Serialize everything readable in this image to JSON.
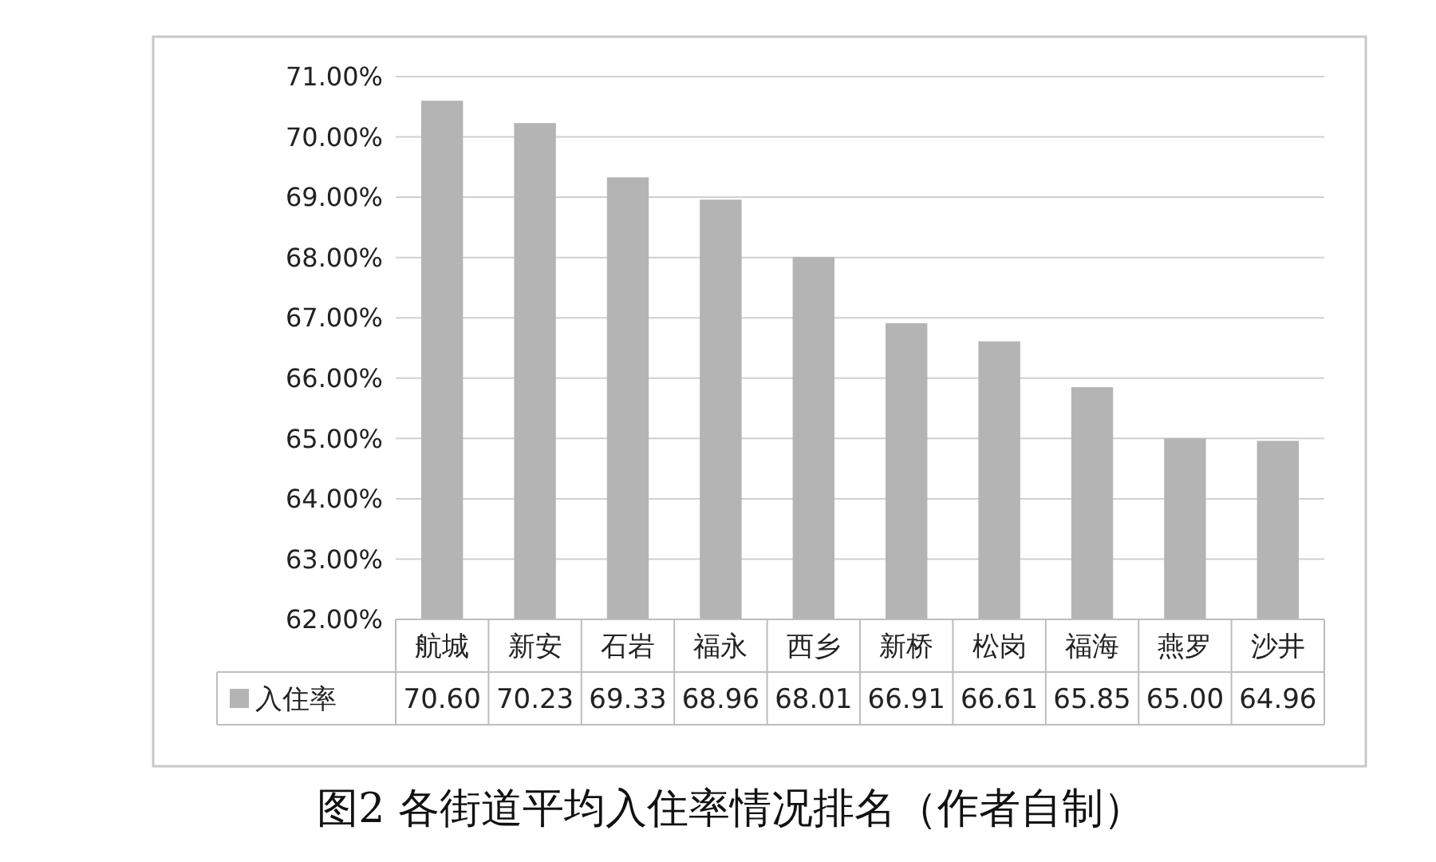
{
  "chart_data": {
    "type": "bar",
    "title": "图2 各街道平均入住率情况排名（作者自制）",
    "categories": [
      "航城",
      "新安",
      "石岩",
      "福永",
      "西乡",
      "新桥",
      "松岗",
      "福海",
      "燕罗",
      "沙井"
    ],
    "series": [
      {
        "name": "入住率",
        "color": "#b4b4b4",
        "values": [
          70.6,
          70.23,
          69.33,
          68.96,
          68.01,
          66.91,
          66.61,
          65.85,
          65.0,
          64.96
        ],
        "value_labels": [
          "70.60",
          "70.23",
          "69.33",
          "68.96",
          "68.01",
          "66.91",
          "66.61",
          "65.85",
          "65.00",
          "64.96"
        ]
      }
    ],
    "ylim": [
      62,
      71
    ],
    "yticks": [
      {
        "value": 62,
        "label": "62.00%"
      },
      {
        "value": 63,
        "label": "63.00%"
      },
      {
        "value": 64,
        "label": "64.00%"
      },
      {
        "value": 65,
        "label": "65.00%"
      },
      {
        "value": 66,
        "label": "66.00%"
      },
      {
        "value": 67,
        "label": "67.00%"
      },
      {
        "value": 68,
        "label": "68.00%"
      },
      {
        "value": 69,
        "label": "69.00%"
      },
      {
        "value": 70,
        "label": "70.00%"
      },
      {
        "value": 71,
        "label": "71.00%"
      }
    ],
    "grid": "y",
    "legend": "bottom left"
  }
}
